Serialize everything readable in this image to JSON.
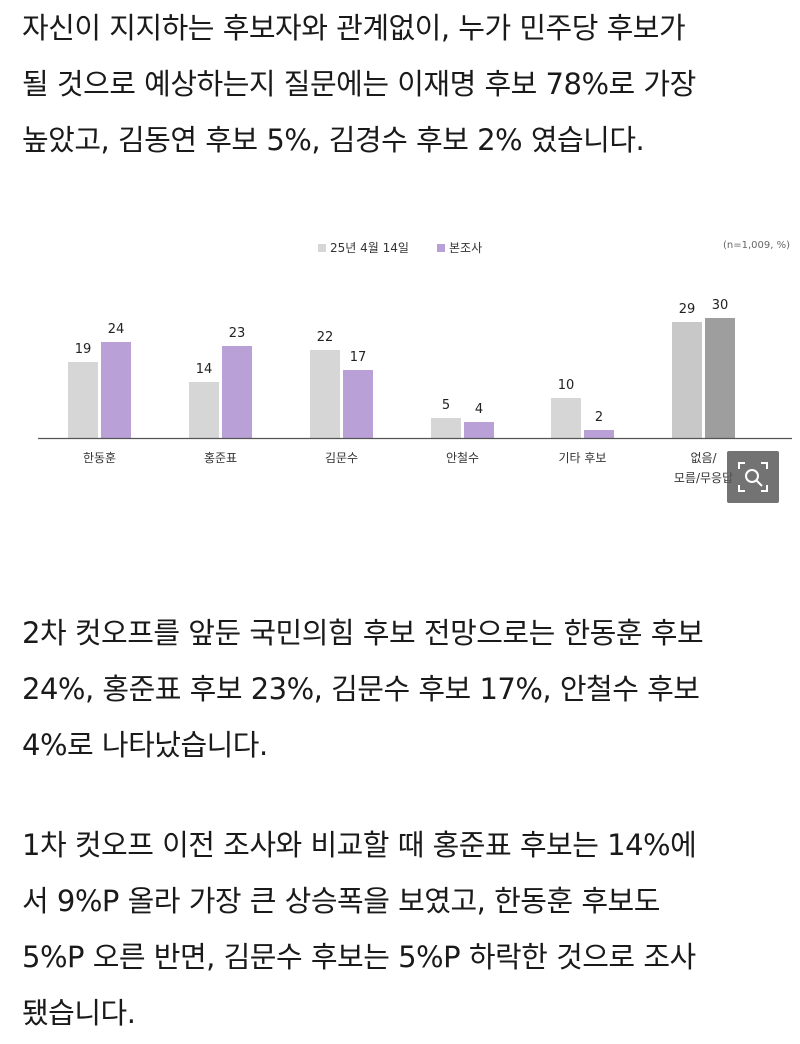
{
  "article": {
    "paragraph1": [
      "자신이 지지하는 후보자와 관계없이, 누가 민주당 후보가",
      "될 것으로 예상하는지 질문에는 이재명 후보 78%로 가장",
      "높았고, 김동연 후보 5%, 김경수 후보 2% 였습니다."
    ],
    "paragraph2": [
      "2차 컷오프를 앞둔 국민의힘 후보 전망으로는 한동훈 후보",
      "24%, 홍준표 후보 23%, 김문수 후보 17%, 안철수 후보",
      "4%로 나타났습니다."
    ],
    "paragraph3": [
      "1차 컷오프 이전 조사와 비교할 때 홍준표 후보는 14%에",
      "서 9%P 올라 가장 큰 상승폭을 보였고, 한동훈 후보도",
      "5%P 오른 반면, 김문수 후보는 5%P 하락한 것으로 조사",
      "됐습니다."
    ]
  },
  "chart_data": {
    "type": "bar",
    "note": "(n=1,009, %)",
    "categories": [
      "한동훈",
      "홍준표",
      "김문수",
      "안철수",
      "기타 후보",
      "없음/\n모름/무응답"
    ],
    "series": [
      {
        "name": "25년 4월 14일",
        "values": [
          19,
          14,
          22,
          5,
          10,
          29
        ]
      },
      {
        "name": "본조사",
        "values": [
          24,
          23,
          17,
          4,
          2,
          30
        ]
      }
    ],
    "ylim": [
      0,
      30
    ],
    "legend": "top-center",
    "grid": false,
    "colors": {
      "series1": "#d6d6d6",
      "series2": "#b9a0d6",
      "last_series1": "#c8c8c8",
      "last_series2": "#9e9e9e",
      "axis": "#555555"
    }
  },
  "ui": {
    "zoom_icon": "zoom-magnifier-icon"
  }
}
